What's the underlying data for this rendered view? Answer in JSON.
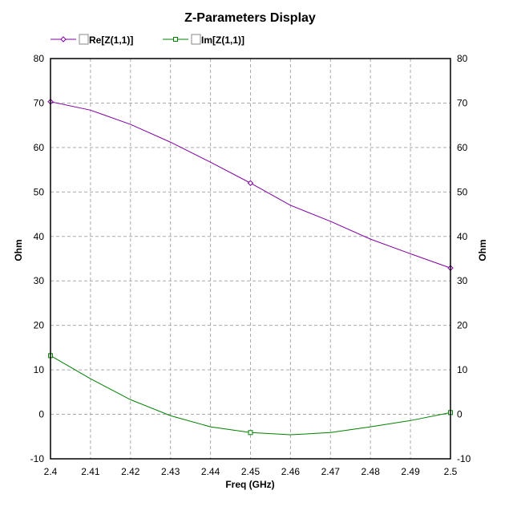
{
  "chart_data": {
    "type": "line",
    "title": "Z-Parameters Display",
    "xlabel": "Freq (GHz)",
    "ylabel": "Ohm",
    "ylabel_right": "Ohm",
    "xlim": [
      2.4,
      2.5
    ],
    "ylim": [
      -10,
      80
    ],
    "xticks": [
      "2.4",
      "2.41",
      "2.42",
      "2.43",
      "2.44",
      "2.45",
      "2.46",
      "2.47",
      "2.48",
      "2.49",
      "2.5"
    ],
    "yticks": [
      "80",
      "70",
      "60",
      "50",
      "40",
      "30",
      "20",
      "10",
      "0",
      "-10"
    ],
    "grid": true,
    "legend_position": "top-left",
    "x": [
      2.4,
      2.41,
      2.42,
      2.43,
      2.44,
      2.45,
      2.46,
      2.47,
      2.48,
      2.49,
      2.5
    ],
    "series": [
      {
        "name": "Re[Z(1,1)]",
        "color": "#8000a0",
        "marker": "diamond",
        "values": [
          70.3,
          68.4,
          65.2,
          61.2,
          56.7,
          52.0,
          47.0,
          43.4,
          39.4,
          36.1,
          32.9
        ]
      },
      {
        "name": "Im[Z(1,1)]",
        "color": "#008000",
        "marker": "square",
        "values": [
          13.2,
          8.0,
          3.3,
          -0.3,
          -2.8,
          -4.1,
          -4.6,
          -4.1,
          -2.8,
          -1.4,
          0.4
        ]
      }
    ],
    "marker_x": [
      2.4,
      2.45,
      2.5
    ]
  }
}
